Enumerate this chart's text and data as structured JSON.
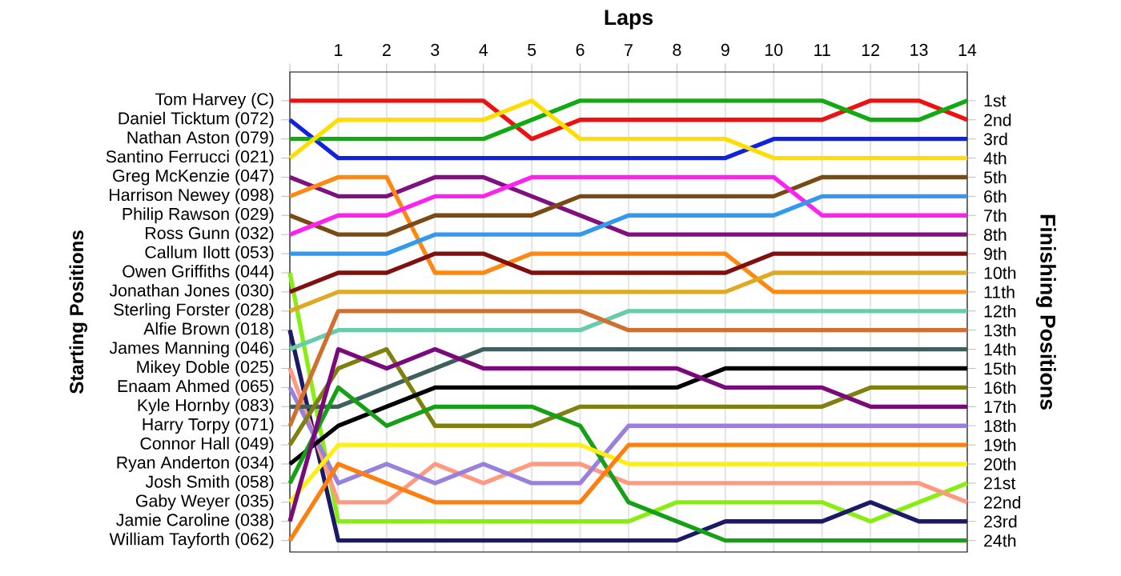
{
  "chart_data": {
    "type": "line",
    "xlabel": "Laps",
    "y2label": "Finishing Positions",
    "x": [
      0,
      1,
      2,
      3,
      4,
      5,
      6,
      7,
      8,
      9,
      10,
      11,
      12,
      13,
      14
    ],
    "xlim": [
      0,
      14
    ],
    "xticks": [
      {
        "value": 0,
        "label": null
      },
      1,
      2,
      3,
      4,
      5,
      6,
      7,
      8,
      9,
      10,
      11,
      12,
      13,
      14
    ],
    "annotations": [
      "Starting Positions",
      "Tom Harvey (C)",
      "Daniel Ticktum (072)",
      "Nathan Aston (079)",
      "Santino Ferrucci (021)",
      "Greg McKenzie (047)",
      "Harrison Newey (098)",
      "Philip Rawson (029)",
      "Ross Gunn (032)",
      "Callum Ilott (053)",
      "Owen Griffiths (044)",
      "Jonathan Jones (030)",
      "Sterling Forster (028)",
      "Alfie Brown (018)",
      "James Manning (046)",
      "Mikey Doble (025)",
      "Enaam Ahmed (065)",
      "Kyle Hornby (083)",
      "Harry Torpy (071)",
      "Connor Hall (049)",
      "Ryan Anderton (034)",
      "Josh Smith (058)",
      "Gaby Weyer (035)",
      "Jamie Caroline (038)",
      "William Tayforth (062)"
    ],
    "y2lim": [
      24.6,
      -0.5
    ],
    "y2ticks": [
      {
        "value": 1,
        "label": "1st"
      },
      {
        "value": 2,
        "label": "2nd"
      },
      {
        "value": 3,
        "label": "3rd"
      },
      {
        "value": 4,
        "label": "4th"
      },
      {
        "value": 5,
        "label": "5th"
      },
      {
        "value": 6,
        "label": "6th"
      },
      {
        "value": 7,
        "label": "7th"
      },
      {
        "value": 8,
        "label": "8th"
      },
      {
        "value": 9,
        "label": "9th"
      },
      {
        "value": 10,
        "label": "10th"
      },
      {
        "value": 11,
        "label": "11th"
      },
      {
        "value": 12,
        "label": "12th"
      },
      {
        "value": 13,
        "label": "13th"
      },
      {
        "value": 14,
        "label": "14th"
      },
      {
        "value": 15,
        "label": "15th"
      },
      {
        "value": 16,
        "label": "16th"
      },
      {
        "value": 17,
        "label": "17th"
      },
      {
        "value": 18,
        "label": "18th"
      },
      {
        "value": 19,
        "label": "19th"
      },
      {
        "value": 20,
        "label": "20th"
      },
      {
        "value": 21,
        "label": "21st"
      },
      {
        "value": 22,
        "label": "22nd"
      },
      {
        "value": 23,
        "label": "23rd"
      },
      {
        "value": 24,
        "label": "24th"
      }
    ],
    "grid": "x",
    "series": [
      {
        "color": "#ee1111",
        "axis": "y2",
        "values": [
          1,
          1,
          1,
          1,
          1,
          3,
          2,
          2,
          2,
          2,
          2,
          2,
          1,
          1,
          2
        ]
      },
      {
        "color": "#1122dd",
        "axis": "y2",
        "values": [
          2,
          4,
          4,
          4,
          4,
          4,
          4,
          4,
          4,
          4,
          3,
          3,
          3,
          3,
          3
        ]
      },
      {
        "color": "#11aa11",
        "axis": "y2",
        "values": [
          3,
          3,
          3,
          3,
          3,
          2,
          1,
          1,
          1,
          1,
          1,
          1,
          2,
          2,
          1
        ]
      },
      {
        "color": "#ffdd00",
        "axis": "y2",
        "values": [
          4,
          2,
          2,
          2,
          2,
          1,
          3,
          3,
          3,
          3,
          4,
          4,
          4,
          4,
          4
        ]
      },
      {
        "color": "#801080",
        "axis": "y2",
        "values": [
          5,
          6,
          6,
          5,
          5,
          6,
          7,
          8,
          8,
          8,
          8,
          8,
          8,
          8,
          8
        ]
      },
      {
        "color": "#ff8811",
        "axis": "y2",
        "values": [
          6,
          5,
          5,
          10,
          10,
          9,
          9,
          9,
          9,
          9,
          11,
          11,
          11,
          11,
          11
        ]
      },
      {
        "color": "#7a4a15",
        "axis": "y2",
        "values": [
          7,
          8,
          8,
          7,
          7,
          7,
          6,
          6,
          6,
          6,
          6,
          5,
          5,
          5,
          5
        ]
      },
      {
        "color": "#ff22ee",
        "axis": "y2",
        "values": [
          8,
          7,
          7,
          6,
          6,
          5,
          5,
          5,
          5,
          5,
          5,
          7,
          7,
          7,
          7
        ]
      },
      {
        "color": "#3399ee",
        "axis": "y2",
        "values": [
          9,
          9,
          9,
          8,
          8,
          8,
          8,
          7,
          7,
          7,
          7,
          6,
          6,
          6,
          6
        ]
      },
      {
        "color": "#88ee11",
        "axis": "y2",
        "values": [
          10,
          23,
          23,
          23,
          23,
          23,
          23,
          23,
          22,
          22,
          22,
          22,
          23,
          22,
          21
        ]
      },
      {
        "color": "#801010",
        "axis": "y2",
        "values": [
          11,
          10,
          10,
          9,
          9,
          10,
          10,
          10,
          10,
          10,
          9,
          9,
          9,
          9,
          9
        ]
      },
      {
        "color": "#ddaa22",
        "axis": "y2",
        "values": [
          12,
          11,
          11,
          11,
          11,
          11,
          11,
          11,
          11,
          11,
          10,
          10,
          10,
          10,
          10
        ]
      },
      {
        "color": "#1a1a66",
        "axis": "y2",
        "values": [
          13,
          24,
          24,
          24,
          24,
          24,
          24,
          24,
          24,
          23,
          23,
          23,
          22,
          23,
          23
        ]
      },
      {
        "color": "#66ccaa",
        "axis": "y2",
        "values": [
          14,
          13,
          13,
          13,
          13,
          13,
          13,
          12,
          12,
          12,
          12,
          12,
          12,
          12,
          12
        ]
      },
      {
        "color": "#ff9980",
        "axis": "y2",
        "values": [
          15,
          22,
          22,
          20,
          21,
          20,
          20,
          21,
          21,
          21,
          21,
          21,
          21,
          21,
          22
        ]
      },
      {
        "color": "#9980dd",
        "axis": "y2",
        "values": [
          16,
          21,
          20,
          21,
          20,
          21,
          21,
          18,
          18,
          18,
          18,
          18,
          18,
          18,
          18
        ]
      },
      {
        "color": "#3f5f5f",
        "axis": "y2",
        "values": [
          17,
          17,
          16,
          15,
          14,
          14,
          14,
          14,
          14,
          14,
          14,
          14,
          14,
          14,
          14
        ]
      },
      {
        "color": "#d07030",
        "axis": "y2",
        "values": [
          18,
          12,
          12,
          12,
          12,
          12,
          12,
          13,
          13,
          13,
          13,
          13,
          13,
          13,
          13
        ]
      },
      {
        "color": "#808010",
        "axis": "y2",
        "values": [
          19,
          15,
          14,
          18,
          18,
          18,
          17,
          17,
          17,
          17,
          17,
          17,
          16,
          16,
          16
        ]
      },
      {
        "color": "#000000",
        "axis": "y2",
        "values": [
          20,
          18,
          17,
          16,
          16,
          16,
          16,
          16,
          16,
          15,
          15,
          15,
          15,
          15,
          15
        ]
      },
      {
        "color": "#16a016",
        "axis": "y2",
        "values": [
          21,
          16,
          18,
          17,
          17,
          17,
          18,
          22,
          23,
          24,
          24,
          24,
          24,
          24,
          24
        ]
      },
      {
        "color": "#ffee11",
        "axis": "y2",
        "values": [
          22,
          19,
          19,
          19,
          19,
          19,
          19,
          20,
          20,
          20,
          20,
          20,
          20,
          20,
          20
        ]
      },
      {
        "color": "#7a0a7a",
        "axis": "y2",
        "values": [
          23,
          14,
          15,
          14,
          15,
          15,
          15,
          15,
          15,
          16,
          16,
          16,
          17,
          17,
          17
        ]
      },
      {
        "color": "#ff7f0e",
        "axis": "y2",
        "values": [
          24,
          20,
          21,
          22,
          22,
          22,
          22,
          19,
          19,
          19,
          19,
          19,
          19,
          19,
          19
        ]
      }
    ]
  }
}
